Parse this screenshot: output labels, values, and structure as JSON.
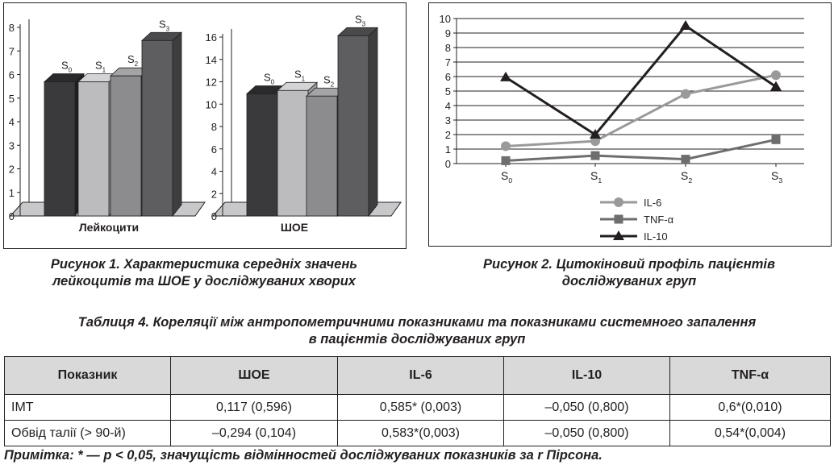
{
  "fig1": {
    "caption_line1": "Рисунок 1. Характеристика середніх значень",
    "caption_line2": "лейкоцитів та ШОЕ у досліджуваних хворих",
    "charts": [
      {
        "type": "bar",
        "xlabel": "Лейкоцити",
        "categories": [
          "S0",
          "S1",
          "S2",
          "S3"
        ],
        "values": [
          5.35,
          5.35,
          5.6,
          7.1
        ],
        "ylim": [
          0,
          8
        ],
        "ticks": [
          "0",
          "1",
          "2",
          "3",
          "4",
          "5",
          "6",
          "7",
          "8"
        ]
      },
      {
        "type": "bar",
        "xlabel": "ШОЕ",
        "categories": [
          "S0",
          "S1",
          "S2",
          "S3"
        ],
        "values": [
          10.2,
          10.5,
          10.0,
          15.4
        ],
        "ylim": [
          0,
          16
        ],
        "ticks": [
          "0",
          "2",
          "4",
          "6",
          "8",
          "10",
          "12",
          "14",
          "16"
        ]
      }
    ]
  },
  "fig2": {
    "caption_line1": "Рисунок 2. Цитокіновий профіль пацієнтів",
    "caption_line2": "досліджуваних груп"
  },
  "chart_data": [
    {
      "type": "bar",
      "xlabel": "Лейкоцити",
      "categories": [
        "S0",
        "S1",
        "S2",
        "S3"
      ],
      "values": [
        5.35,
        5.35,
        5.6,
        7.1
      ],
      "ylim": [
        0,
        8
      ]
    },
    {
      "type": "bar",
      "xlabel": "ШОЕ",
      "categories": [
        "S0",
        "S1",
        "S2",
        "S3"
      ],
      "values": [
        10.2,
        10.5,
        10.0,
        15.4
      ],
      "ylim": [
        0,
        16
      ]
    },
    {
      "type": "line",
      "categories": [
        "S0",
        "S1",
        "S2",
        "S3"
      ],
      "ylim": [
        0,
        10
      ],
      "ticks": [
        "0",
        "1",
        "2",
        "3",
        "4",
        "5",
        "6",
        "7",
        "8",
        "9",
        "10"
      ],
      "series": [
        {
          "name": "IL-6",
          "values": [
            1.2,
            1.55,
            4.8,
            6.1
          ],
          "color": "#9a9a9a",
          "marker": "circle"
        },
        {
          "name": "TNF-α",
          "values": [
            0.2,
            0.55,
            0.3,
            1.65
          ],
          "color": "#6e6e6e",
          "marker": "square"
        },
        {
          "name": "IL-10",
          "values": [
            5.95,
            2.0,
            9.5,
            5.3
          ],
          "color": "#231f20",
          "marker": "triangle"
        }
      ],
      "grid": true,
      "legend": "bottom-left"
    }
  ],
  "table": {
    "title_line1": "Таблиця 4. Кореляції між антропометричними показниками та показниками системного запалення",
    "title_line2": "в пацієнтів досліджуваних груп",
    "headers": [
      "Показник",
      "ШОЕ",
      "IL-6",
      "IL-10",
      "TNF-α"
    ],
    "rows": [
      [
        "ІМТ",
        "0,117 (0,596)",
        "0,585* (0,003)",
        "–0,050 (0,800)",
        "0,6*(0,010)"
      ],
      [
        "Обвід талії (> 90-й)",
        "–0,294 (0,104)",
        "0,583*(0,003)",
        "–0,050 (0,800)",
        "0,54*(0,004)"
      ]
    ]
  },
  "note": "Примітка: * — р < 0,05, значущість відмінностей досліджуваних показників за r Пірсона."
}
